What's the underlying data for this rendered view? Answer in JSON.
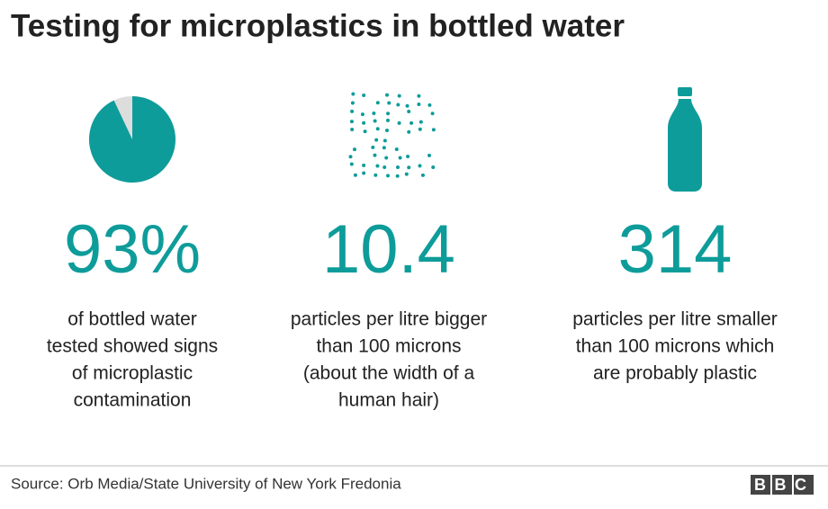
{
  "title": "Testing for microplastics in bottled water",
  "stats": [
    {
      "value": {
        "value": 93,
        "label": "93%"
      },
      "lines": [
        "of bottled water",
        "tested showed signs",
        "of microplastic",
        "contamination"
      ]
    },
    {
      "value": 10.4,
      "lines": [
        "particles per litre bigger",
        "than 100 microns",
        "(about the width of a",
        "human hair)"
      ]
    },
    {
      "value": 314,
      "lines": [
        "particles per litre smaller",
        "than 100 microns which",
        "are probably plastic"
      ]
    }
  ],
  "source": "Source: Orb Media/State University of New York Fredonia",
  "logo": "BBC"
}
